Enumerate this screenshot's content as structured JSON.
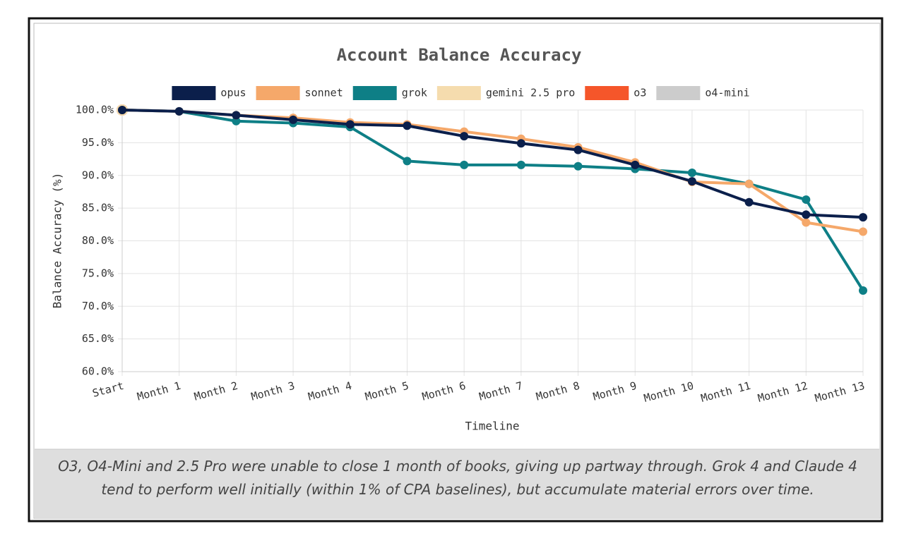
{
  "chart_data": {
    "type": "line",
    "title": "Account Balance Accuracy",
    "x_label": "Timeline",
    "y_label": "Balance Accuracy (%)",
    "caption": "O3, O4-Mini and 2.5 Pro were unable to close 1 month of books, giving up partway through. Grok 4 and Claude 4 tend to perform well initially (within 1% of CPA baselines), but accumulate material errors over time.",
    "categories": [
      "Start",
      "Month 1",
      "Month 2",
      "Month 3",
      "Month 4",
      "Month 5",
      "Month 6",
      "Month 7",
      "Month 8",
      "Month 9",
      "Month 10",
      "Month 11",
      "Month 12",
      "Month 13"
    ],
    "series": [
      {
        "name": "opus",
        "color": "#0b1f4b",
        "values": [
          100,
          99.8,
          99.2,
          98.5,
          97.8,
          97.6,
          96.0,
          94.9,
          93.9,
          91.6,
          89.1,
          85.9,
          84.0,
          83.6
        ]
      },
      {
        "name": "sonnet",
        "color": "#f5a86a",
        "values": [
          100,
          99.8,
          99.2,
          98.8,
          98.1,
          97.8,
          96.7,
          95.6,
          94.3,
          92.0,
          89.0,
          88.7,
          82.8,
          81.4
        ]
      },
      {
        "name": "grok",
        "color": "#0e7f86",
        "values": [
          100,
          99.8,
          98.3,
          98.0,
          97.4,
          92.2,
          91.6,
          91.6,
          91.4,
          91.0,
          90.4,
          88.7,
          86.3,
          72.4
        ]
      },
      {
        "name": "gemini 2.5 pro",
        "color": "#f5dcae",
        "values": [
          100,
          null,
          null,
          null,
          null,
          null,
          null,
          null,
          null,
          null,
          null,
          null,
          null,
          null
        ]
      },
      {
        "name": "o3",
        "color": "#f5562a",
        "values": [
          100,
          null,
          null,
          null,
          null,
          null,
          null,
          null,
          null,
          null,
          null,
          null,
          null,
          null
        ]
      },
      {
        "name": "o4-mini",
        "color": "#cccccc",
        "values": [
          100,
          null,
          null,
          null,
          null,
          null,
          null,
          null,
          null,
          null,
          null,
          null,
          null,
          null
        ]
      }
    ],
    "ylim": [
      60,
      100
    ],
    "yticks": [
      {
        "value": 60,
        "label": "60.0%"
      },
      {
        "value": 65,
        "label": "65.0%"
      },
      {
        "value": 70,
        "label": "70.0%"
      },
      {
        "value": 75,
        "label": "75.0%"
      },
      {
        "value": 80,
        "label": "80.0%"
      },
      {
        "value": 85,
        "label": "85.0%"
      },
      {
        "value": 90,
        "label": "90.0%"
      },
      {
        "value": 95,
        "label": "95.0%"
      },
      {
        "value": 100,
        "label": "100.0%"
      }
    ],
    "grid": true,
    "legend": "top"
  }
}
